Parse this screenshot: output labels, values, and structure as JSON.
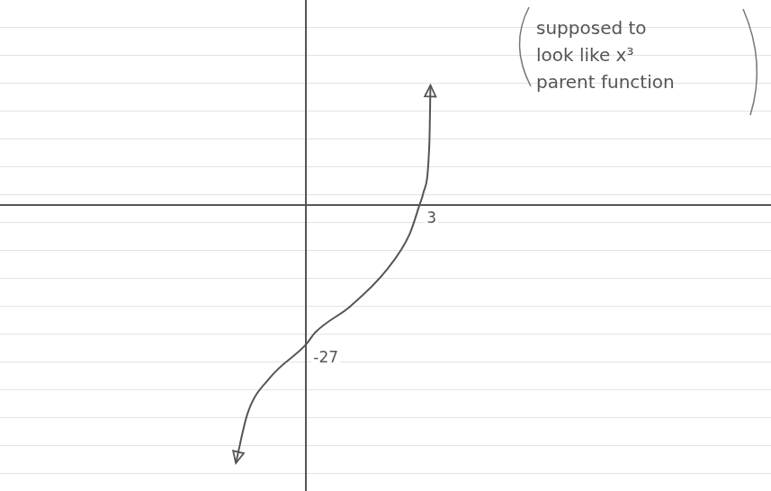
{
  "chart_data": {
    "type": "line",
    "x": [
      -1.86,
      -1.55,
      -0.95,
      0,
      0.24,
      1.19,
      2.14,
      2.74,
      3,
      3.1,
      3.26,
      3.29
    ],
    "series": [
      {
        "values": [
          -50,
          -40.4,
          -33.4,
          -27,
          -24.7,
          -19.5,
          -12.5,
          -5.6,
          0,
          2.3,
          11.8,
          23.2
        ],
        "color": "#555555",
        "marker": "none"
      }
    ],
    "xlim": [
      -8.1,
      12.3
    ],
    "ylim": [
      -55.4,
      39.7
    ],
    "xticks": [
      0
    ],
    "yticks": [
      0
    ],
    "grid": true,
    "tick_labels": false,
    "annotation": "supposed to look like x³ parent function",
    "point_labels": [
      {
        "x": 3,
        "y": 0,
        "label": "3"
      },
      {
        "x": 0,
        "y": -27,
        "label": "-27"
      }
    ]
  }
}
